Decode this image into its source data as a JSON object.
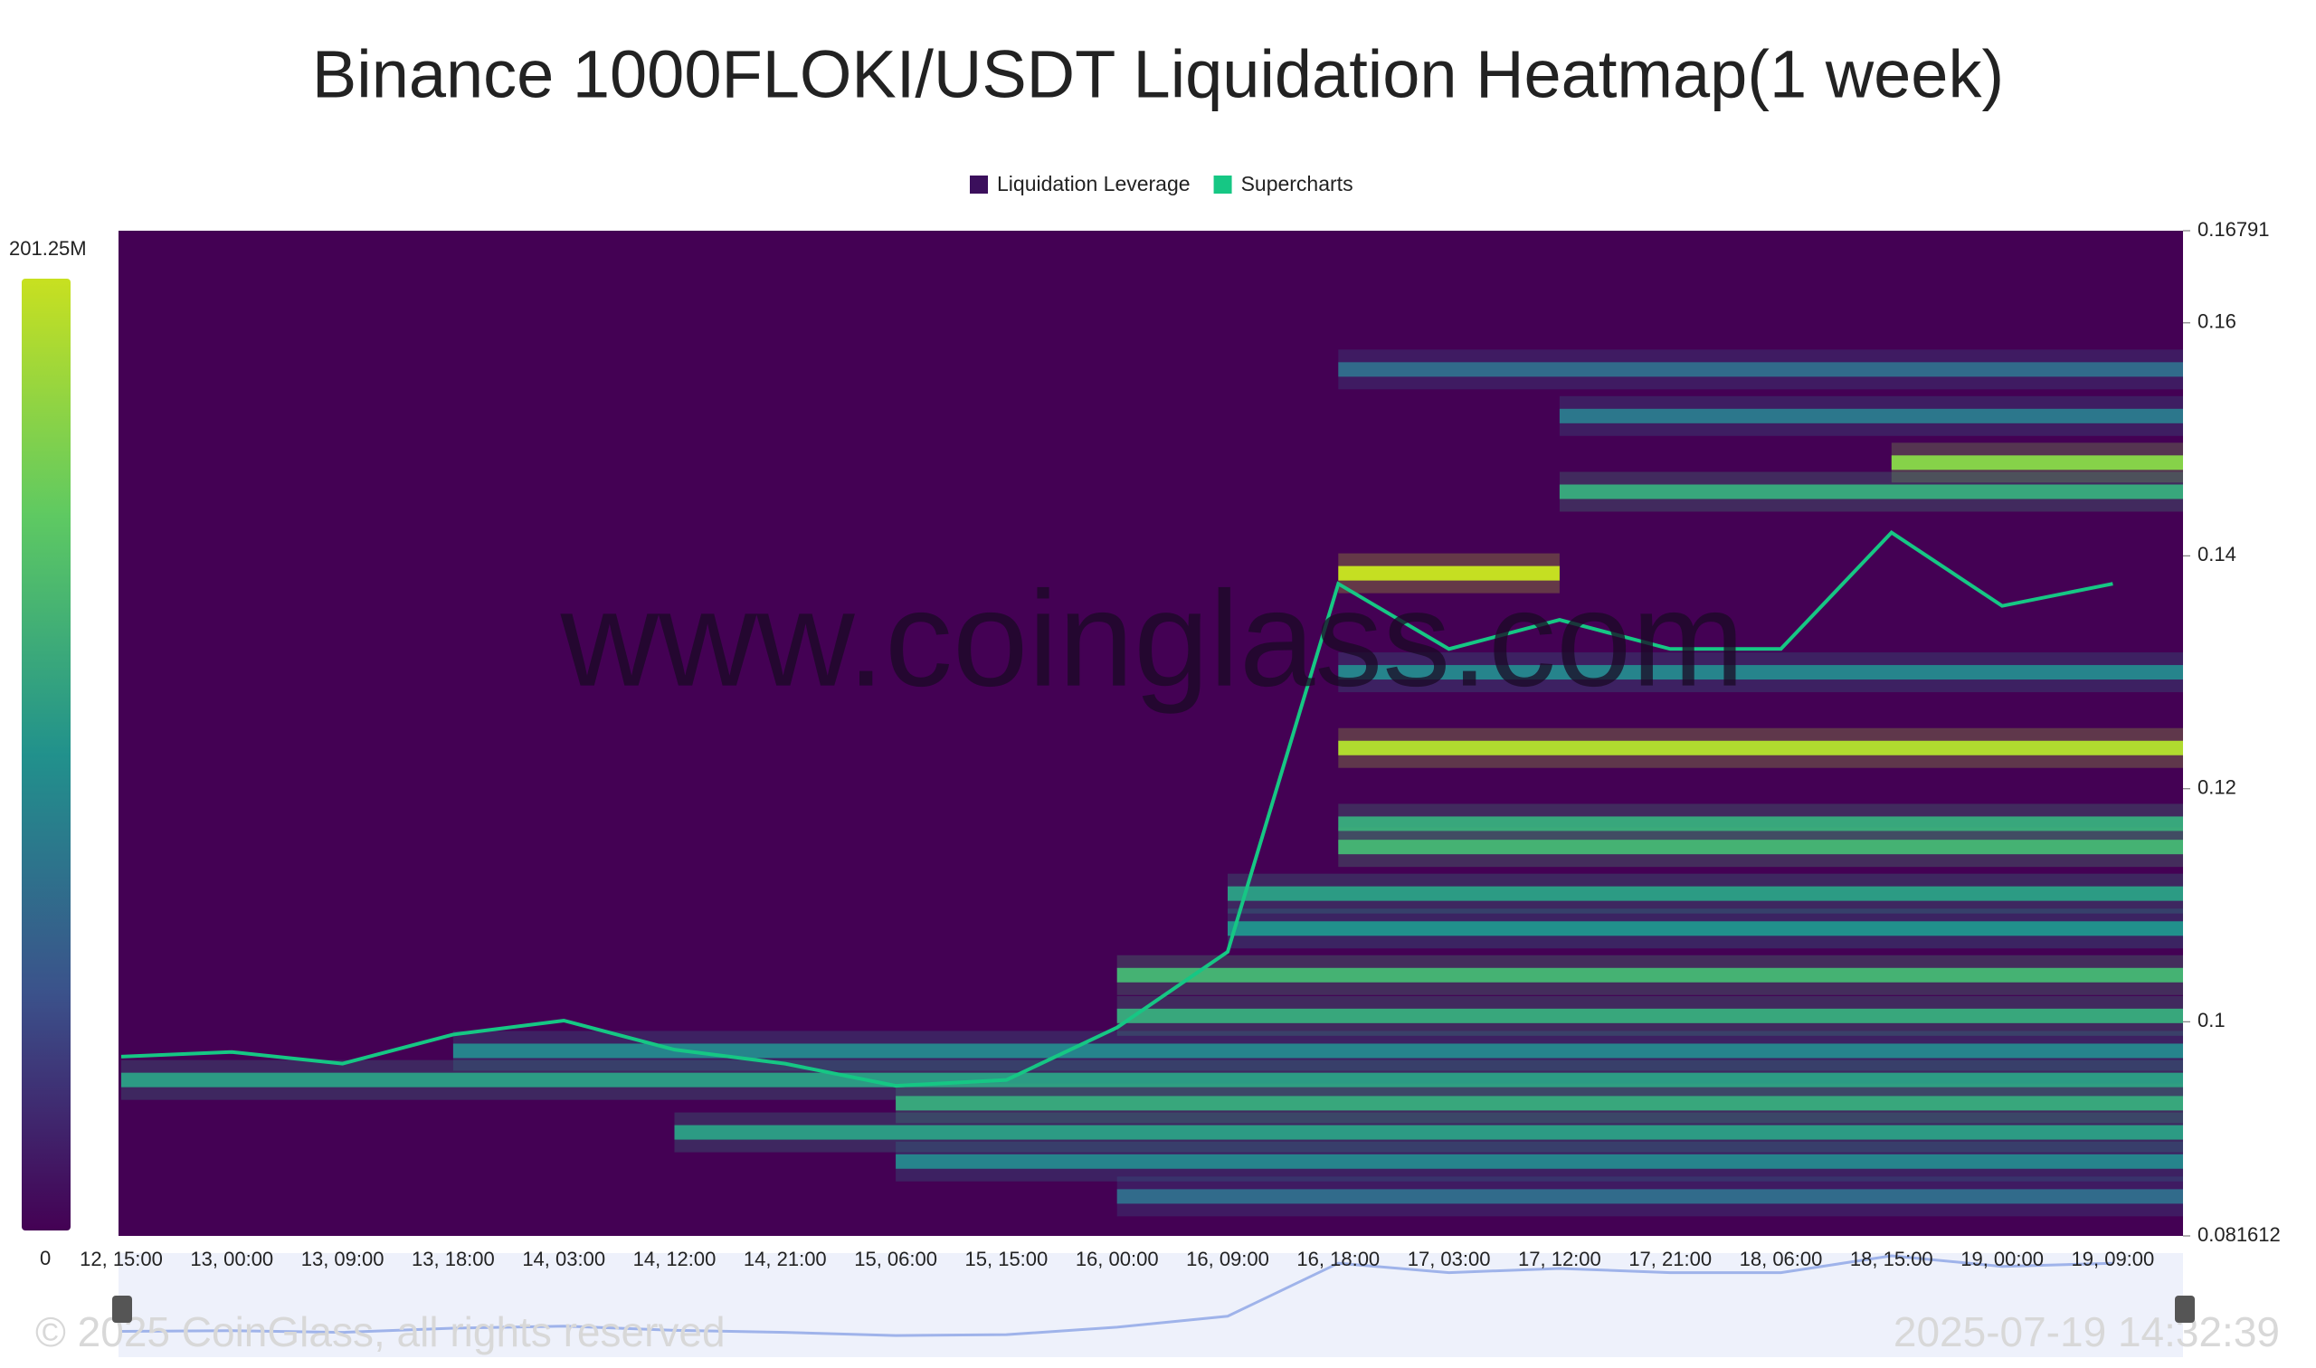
{
  "chart_data": {
    "type": "heatmap",
    "title": "Binance 1000FLOKI/USDT Liquidation Heatmap(1 week)",
    "watermark": "www.coinglass.com",
    "copyright": "© 2025 CoinGlass, all rights reserved",
    "timestamp": "2025-07-19 14:32:39",
    "categories": [
      "12, 15:00",
      "13, 00:00",
      "13, 09:00",
      "13, 18:00",
      "14, 03:00",
      "14, 12:00",
      "14, 21:00",
      "15, 06:00",
      "15, 15:00",
      "16, 00:00",
      "16, 09:00",
      "16, 18:00",
      "17, 03:00",
      "17, 12:00",
      "17, 21:00",
      "18, 06:00",
      "18, 15:00",
      "19, 00:00",
      "19, 09:00"
    ],
    "series": [
      {
        "name": "Liquidation Leverage",
        "color": "#3b0f5c"
      },
      {
        "name": "Supercharts",
        "color": "#16c784",
        "values": [
          0.097,
          0.0974,
          0.0964,
          0.0989,
          0.1001,
          0.0976,
          0.0964,
          0.0945,
          0.095,
          0.0995,
          0.106,
          0.1376,
          0.132,
          0.1345,
          0.132,
          0.132,
          0.142,
          0.1357,
          0.1376
        ]
      }
    ],
    "levels": [
      {
        "price": 0.156,
        "value": 70,
        "from": "16, 18:00"
      },
      {
        "price": 0.152,
        "value": 80,
        "from": "17, 12:00"
      },
      {
        "price": 0.148,
        "value": 170,
        "from": "18, 15:00"
      },
      {
        "price": 0.1455,
        "value": 120,
        "from": "17, 12:00"
      },
      {
        "price": 0.1385,
        "value": 200,
        "from": "16, 18:00",
        "to": "17, 12:00"
      },
      {
        "price": 0.13,
        "value": 90,
        "from": "16, 18:00"
      },
      {
        "price": 0.1235,
        "value": 190,
        "from": "16, 18:00"
      },
      {
        "price": 0.117,
        "value": 120,
        "from": "16, 18:00"
      },
      {
        "price": 0.115,
        "value": 130,
        "from": "16, 18:00"
      },
      {
        "price": 0.111,
        "value": 110,
        "from": "16, 09:00"
      },
      {
        "price": 0.108,
        "value": 100,
        "from": "16, 09:00"
      },
      {
        "price": 0.104,
        "value": 130,
        "from": "16, 00:00"
      },
      {
        "price": 0.1005,
        "value": 120,
        "from": "16, 00:00"
      },
      {
        "price": 0.0975,
        "value": 90,
        "from": "13, 18:00"
      },
      {
        "price": 0.095,
        "value": 110,
        "from": "12, 15:00"
      },
      {
        "price": 0.093,
        "value": 120,
        "from": "15, 06:00"
      },
      {
        "price": 0.0905,
        "value": 110,
        "from": "14, 12:00"
      },
      {
        "price": 0.088,
        "value": 90,
        "from": "15, 06:00"
      },
      {
        "price": 0.085,
        "value": 70,
        "from": "16, 00:00"
      }
    ],
    "ylim": [
      0.081612,
      0.16791
    ],
    "yticks": [
      0.081612,
      0.1,
      0.12,
      0.14,
      0.16,
      0.16791
    ],
    "colorbar": [
      0,
      {
        "value": 201250000,
        "label": "201.25M"
      }
    ],
    "colorbar_unit": 1000000
  }
}
